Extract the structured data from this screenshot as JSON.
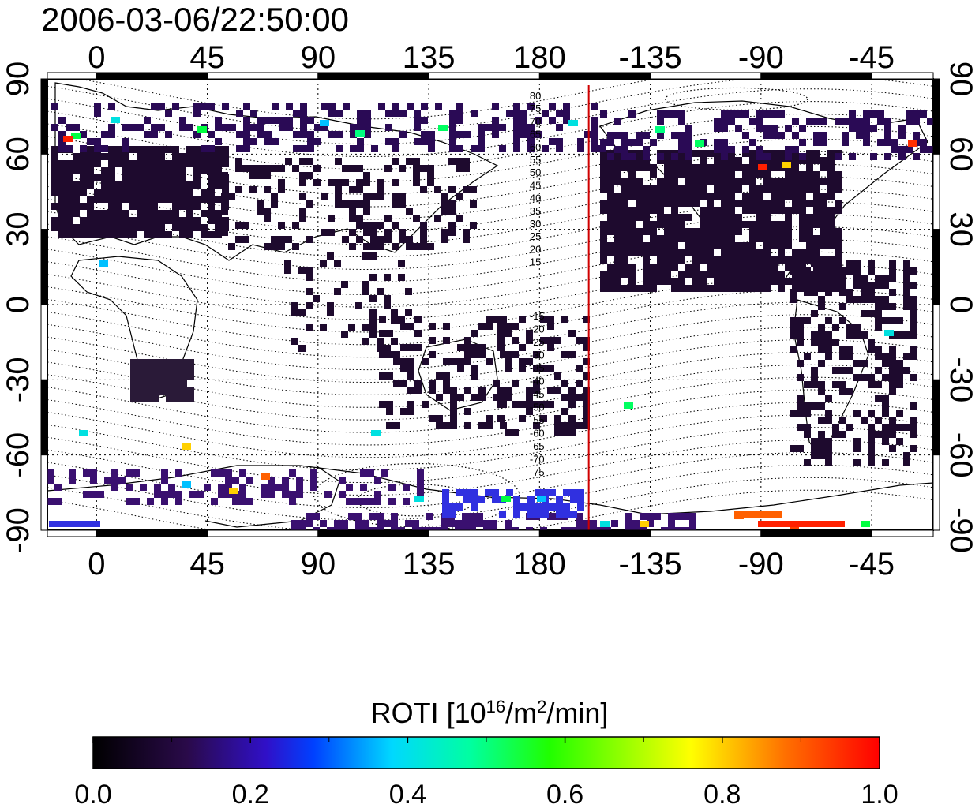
{
  "title": "2006-03-06/22:50:00",
  "map": {
    "lon_ticks": [
      "0",
      "45",
      "90",
      "135",
      "180",
      "-135",
      "-90",
      "-45"
    ],
    "lat_ticks": [
      "90",
      "60",
      "30",
      "0",
      "-30",
      "-60",
      "-90"
    ],
    "lon_range": [
      -20,
      340
    ],
    "lat_range": [
      -90,
      90
    ],
    "terminator_lon": 200,
    "terminator_color": "#d00000",
    "magnetic_lat_labels_north": [
      "80",
      "75",
      "70",
      "65",
      "60",
      "55",
      "50",
      "45",
      "40",
      "35",
      "30",
      "25",
      "20",
      "15"
    ],
    "magnetic_lat_labels_south": [
      "-15",
      "-20",
      "-25",
      "-30",
      "-35",
      "-40",
      "-45",
      "-50",
      "-55",
      "-60",
      "-65",
      "-70",
      "-75"
    ]
  },
  "colorbar": {
    "label_main": "ROTI  [10",
    "label_exp1": "16",
    "label_mid": "/m",
    "label_exp2": "2",
    "label_end": "/min]",
    "ticks": [
      "0.0",
      "0.2",
      "0.4",
      "0.6",
      "0.8",
      "1.0"
    ],
    "range": [
      0,
      1
    ],
    "colormap": [
      "#000000",
      "#3a0a5a",
      "#2a1bd0",
      "#0060ff",
      "#00e0e0",
      "#00ff40",
      "#c0ff00",
      "#ffd000",
      "#ff6000",
      "#ff0000"
    ]
  }
}
